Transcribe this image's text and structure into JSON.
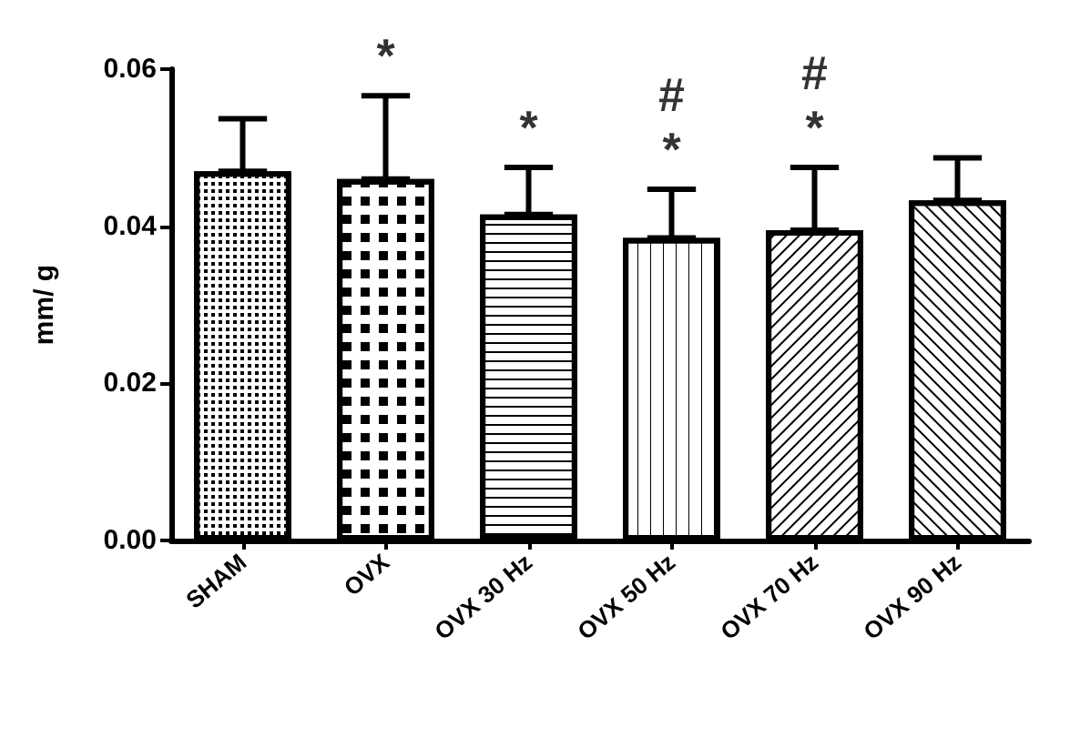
{
  "chart_data": {
    "type": "bar",
    "ylabel": "mm/ g",
    "categories": [
      "SHAM",
      "OVX",
      "OVX 30 Hz",
      "OVX 50 Hz",
      "OVX 70 Hz",
      "OVX 90 Hz"
    ],
    "values": [
      0.047,
      0.046,
      0.0415,
      0.0385,
      0.0395,
      0.0433
    ],
    "errors": [
      [
        0.047,
        0.0537
      ],
      [
        0.046,
        0.0566
      ],
      [
        0.0415,
        0.0475
      ],
      [
        0.0385,
        0.0447
      ],
      [
        0.0395,
        0.0475
      ],
      [
        0.0433,
        0.0487
      ]
    ],
    "color": "#ffffff",
    "ylim": [
      0,
      0.06
    ],
    "yticks": [
      {
        "value": 0,
        "label": "0.00"
      },
      {
        "value": 0.02,
        "label": "0.02"
      },
      {
        "value": 0.04,
        "label": "0.04"
      },
      {
        "value": 0.06,
        "label": "0.06"
      }
    ],
    "grid": false,
    "annotations": [
      {
        "text": "*",
        "x": "OVX",
        "y": 0.0566
      },
      {
        "text": "*",
        "x": "OVX 30 Hz",
        "y": 0.0475
      },
      {
        "text": "*",
        "x": "OVX 50 Hz",
        "y": 0.0447
      },
      {
        "text": "#",
        "x": "OVX 50 Hz",
        "y": 0.0447
      },
      {
        "text": "*",
        "x": "OVX 70 Hz",
        "y": 0.0475
      },
      {
        "text": "#",
        "x": "OVX 70 Hz",
        "y": 0.0475
      }
    ]
  }
}
